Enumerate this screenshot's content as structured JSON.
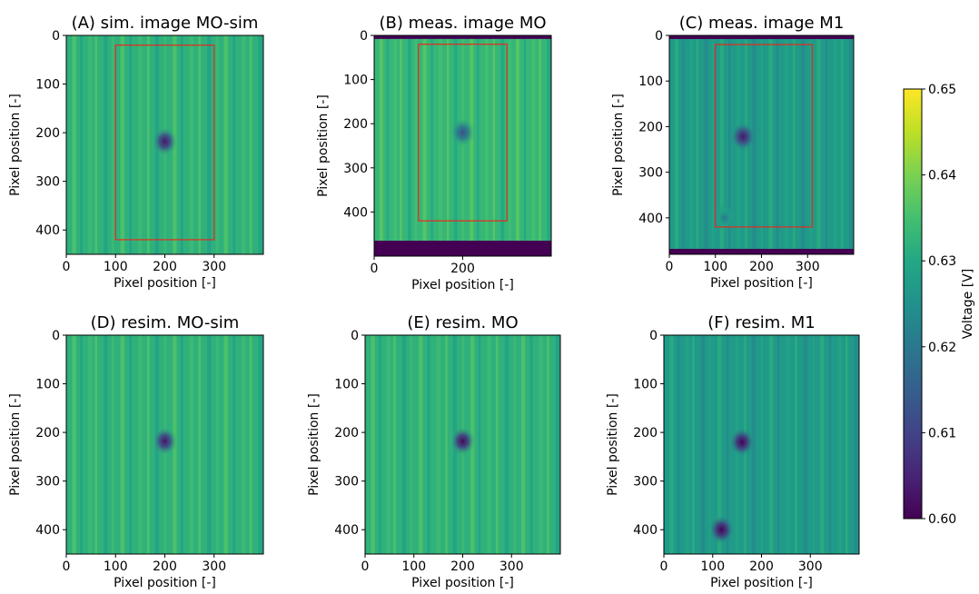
{
  "chart_data": [
    {
      "type": "heatmap",
      "id": "A",
      "title": "(A) sim. image MO-sim",
      "xlabel": "Pixel position [-]",
      "ylabel": "Pixel position [-]",
      "xlim": [
        0,
        400
      ],
      "ylim": [
        450,
        0
      ],
      "xticks": [
        0,
        100,
        200,
        300
      ],
      "yticks": [
        0,
        100,
        200,
        300,
        400
      ],
      "base_voltage": 0.632,
      "spots": [
        {
          "x": 200,
          "y": 218,
          "voltage": 0.603
        }
      ],
      "roi": {
        "x": [
          100,
          300
        ],
        "y": [
          20,
          420
        ]
      },
      "dark_bands": []
    },
    {
      "type": "heatmap",
      "id": "B",
      "title": "(B) meas. image MO",
      "xlabel": "Pixel position [-]",
      "ylabel": "Pixel position [-]",
      "xlim": [
        0,
        400
      ],
      "ylim": [
        500,
        0
      ],
      "xticks": [
        0,
        200
      ],
      "yticks": [
        0,
        100,
        200,
        300,
        400
      ],
      "base_voltage": 0.633,
      "spots": [
        {
          "x": 200,
          "y": 220,
          "voltage": 0.612
        }
      ],
      "roi": {
        "x": [
          100,
          300
        ],
        "y": [
          20,
          420
        ]
      },
      "dark_bands": [
        {
          "y": [
            0,
            8
          ]
        },
        {
          "y": [
            465,
            500
          ]
        }
      ]
    },
    {
      "type": "heatmap",
      "id": "C",
      "title": "(C) meas. image M1",
      "xlabel": "Pixel position [-]",
      "ylabel": "Pixel position [-]",
      "xlim": [
        0,
        400
      ],
      "ylim": [
        480,
        0
      ],
      "xticks": [
        0,
        100,
        200,
        300
      ],
      "yticks": [
        0,
        100,
        200,
        300,
        400
      ],
      "base_voltage": 0.627,
      "spots": [
        {
          "x": 160,
          "y": 222,
          "voltage": 0.603
        },
        {
          "x": 120,
          "y": 400,
          "voltage": 0.62
        }
      ],
      "roi": {
        "x": [
          100,
          310
        ],
        "y": [
          20,
          420
        ]
      },
      "dark_bands": [
        {
          "y": [
            0,
            8
          ]
        },
        {
          "y": [
            468,
            480
          ]
        }
      ]
    },
    {
      "type": "heatmap",
      "id": "D",
      "title": "(D) resim. MO-sim",
      "xlabel": "Pixel position [-]",
      "ylabel": "Pixel position [-]",
      "xlim": [
        0,
        400
      ],
      "ylim": [
        450,
        0
      ],
      "xticks": [
        0,
        100,
        200,
        300
      ],
      "yticks": [
        0,
        100,
        200,
        300,
        400
      ],
      "base_voltage": 0.632,
      "spots": [
        {
          "x": 200,
          "y": 218,
          "voltage": 0.603
        }
      ],
      "roi": null,
      "dark_bands": []
    },
    {
      "type": "heatmap",
      "id": "E",
      "title": "(E) resim. MO",
      "xlabel": "Pixel position [-]",
      "ylabel": "Pixel position [-]",
      "xlim": [
        0,
        400
      ],
      "ylim": [
        450,
        0
      ],
      "xticks": [
        0,
        100,
        200,
        300
      ],
      "yticks": [
        0,
        100,
        200,
        300,
        400
      ],
      "base_voltage": 0.632,
      "spots": [
        {
          "x": 200,
          "y": 218,
          "voltage": 0.601
        }
      ],
      "roi": null,
      "dark_bands": []
    },
    {
      "type": "heatmap",
      "id": "F",
      "title": "(F) resim. M1",
      "xlabel": "Pixel position [-]",
      "ylabel": "Pixel position [-]",
      "xlim": [
        0,
        400
      ],
      "ylim": [
        450,
        0
      ],
      "xticks": [
        0,
        100,
        200,
        300
      ],
      "yticks": [
        0,
        100,
        200,
        300,
        400
      ],
      "base_voltage": 0.627,
      "spots": [
        {
          "x": 160,
          "y": 220,
          "voltage": 0.6
        },
        {
          "x": 118,
          "y": 400,
          "voltage": 0.6
        }
      ],
      "roi": null,
      "dark_bands": []
    }
  ],
  "colorbar": {
    "label": "Voltage [V]",
    "min": 0.6,
    "max": 0.65,
    "ticks": [
      "0.65",
      "0.64",
      "0.63",
      "0.62",
      "0.61",
      "0.60"
    ],
    "tick_values": [
      0.65,
      0.64,
      0.63,
      0.62,
      0.61,
      0.6
    ],
    "colormap": "viridis"
  },
  "colors": {
    "roi": "#e8281e",
    "frame": "#000000"
  }
}
